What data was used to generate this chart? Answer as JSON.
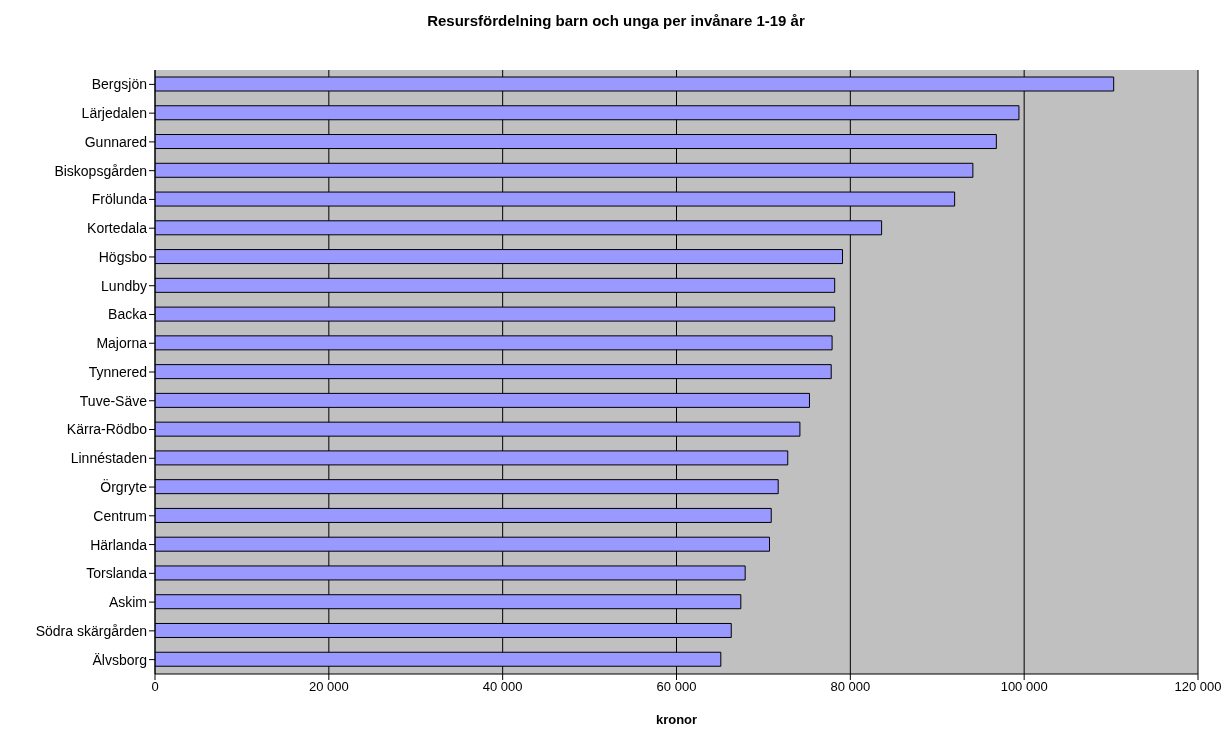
{
  "chart_data": {
    "type": "bar",
    "orientation": "horizontal",
    "title": "Resursfördelning barn och unga per invånare 1-19 år",
    "xlabel": "kronor",
    "categories": [
      "Bergsjön",
      "Lärjedalen",
      "Gunnared",
      "Biskopsgården",
      "Frölunda",
      "Kortedala",
      "Högsbo",
      "Lundby",
      "Backa",
      "Majorna",
      "Tynnered",
      "Tuve-Säve",
      "Kärra-Rödbo",
      "Linnéstaden",
      "Örgryte",
      "Centrum",
      "Härlanda",
      "Torslanda",
      "Askim",
      "Södra skärgården",
      "Älvsborg"
    ],
    "values": [
      110300,
      99400,
      96800,
      94100,
      92000,
      83600,
      79100,
      78200,
      78200,
      77900,
      77800,
      75300,
      74200,
      72800,
      71700,
      70900,
      70700,
      67900,
      67400,
      66300,
      65100
    ],
    "color": "#9999ff",
    "xlim": [
      0,
      120000
    ],
    "xticks": [
      0,
      {
        "value": 20000,
        "label": "20 000"
      },
      {
        "value": 40000,
        "label": "40 000"
      },
      {
        "value": 60000,
        "label": "60 000"
      },
      {
        "value": 80000,
        "label": "80 000"
      },
      {
        "value": 100000,
        "label": "100 000"
      },
      {
        "value": 120000,
        "label": "120 000"
      }
    ],
    "grid": "x"
  }
}
